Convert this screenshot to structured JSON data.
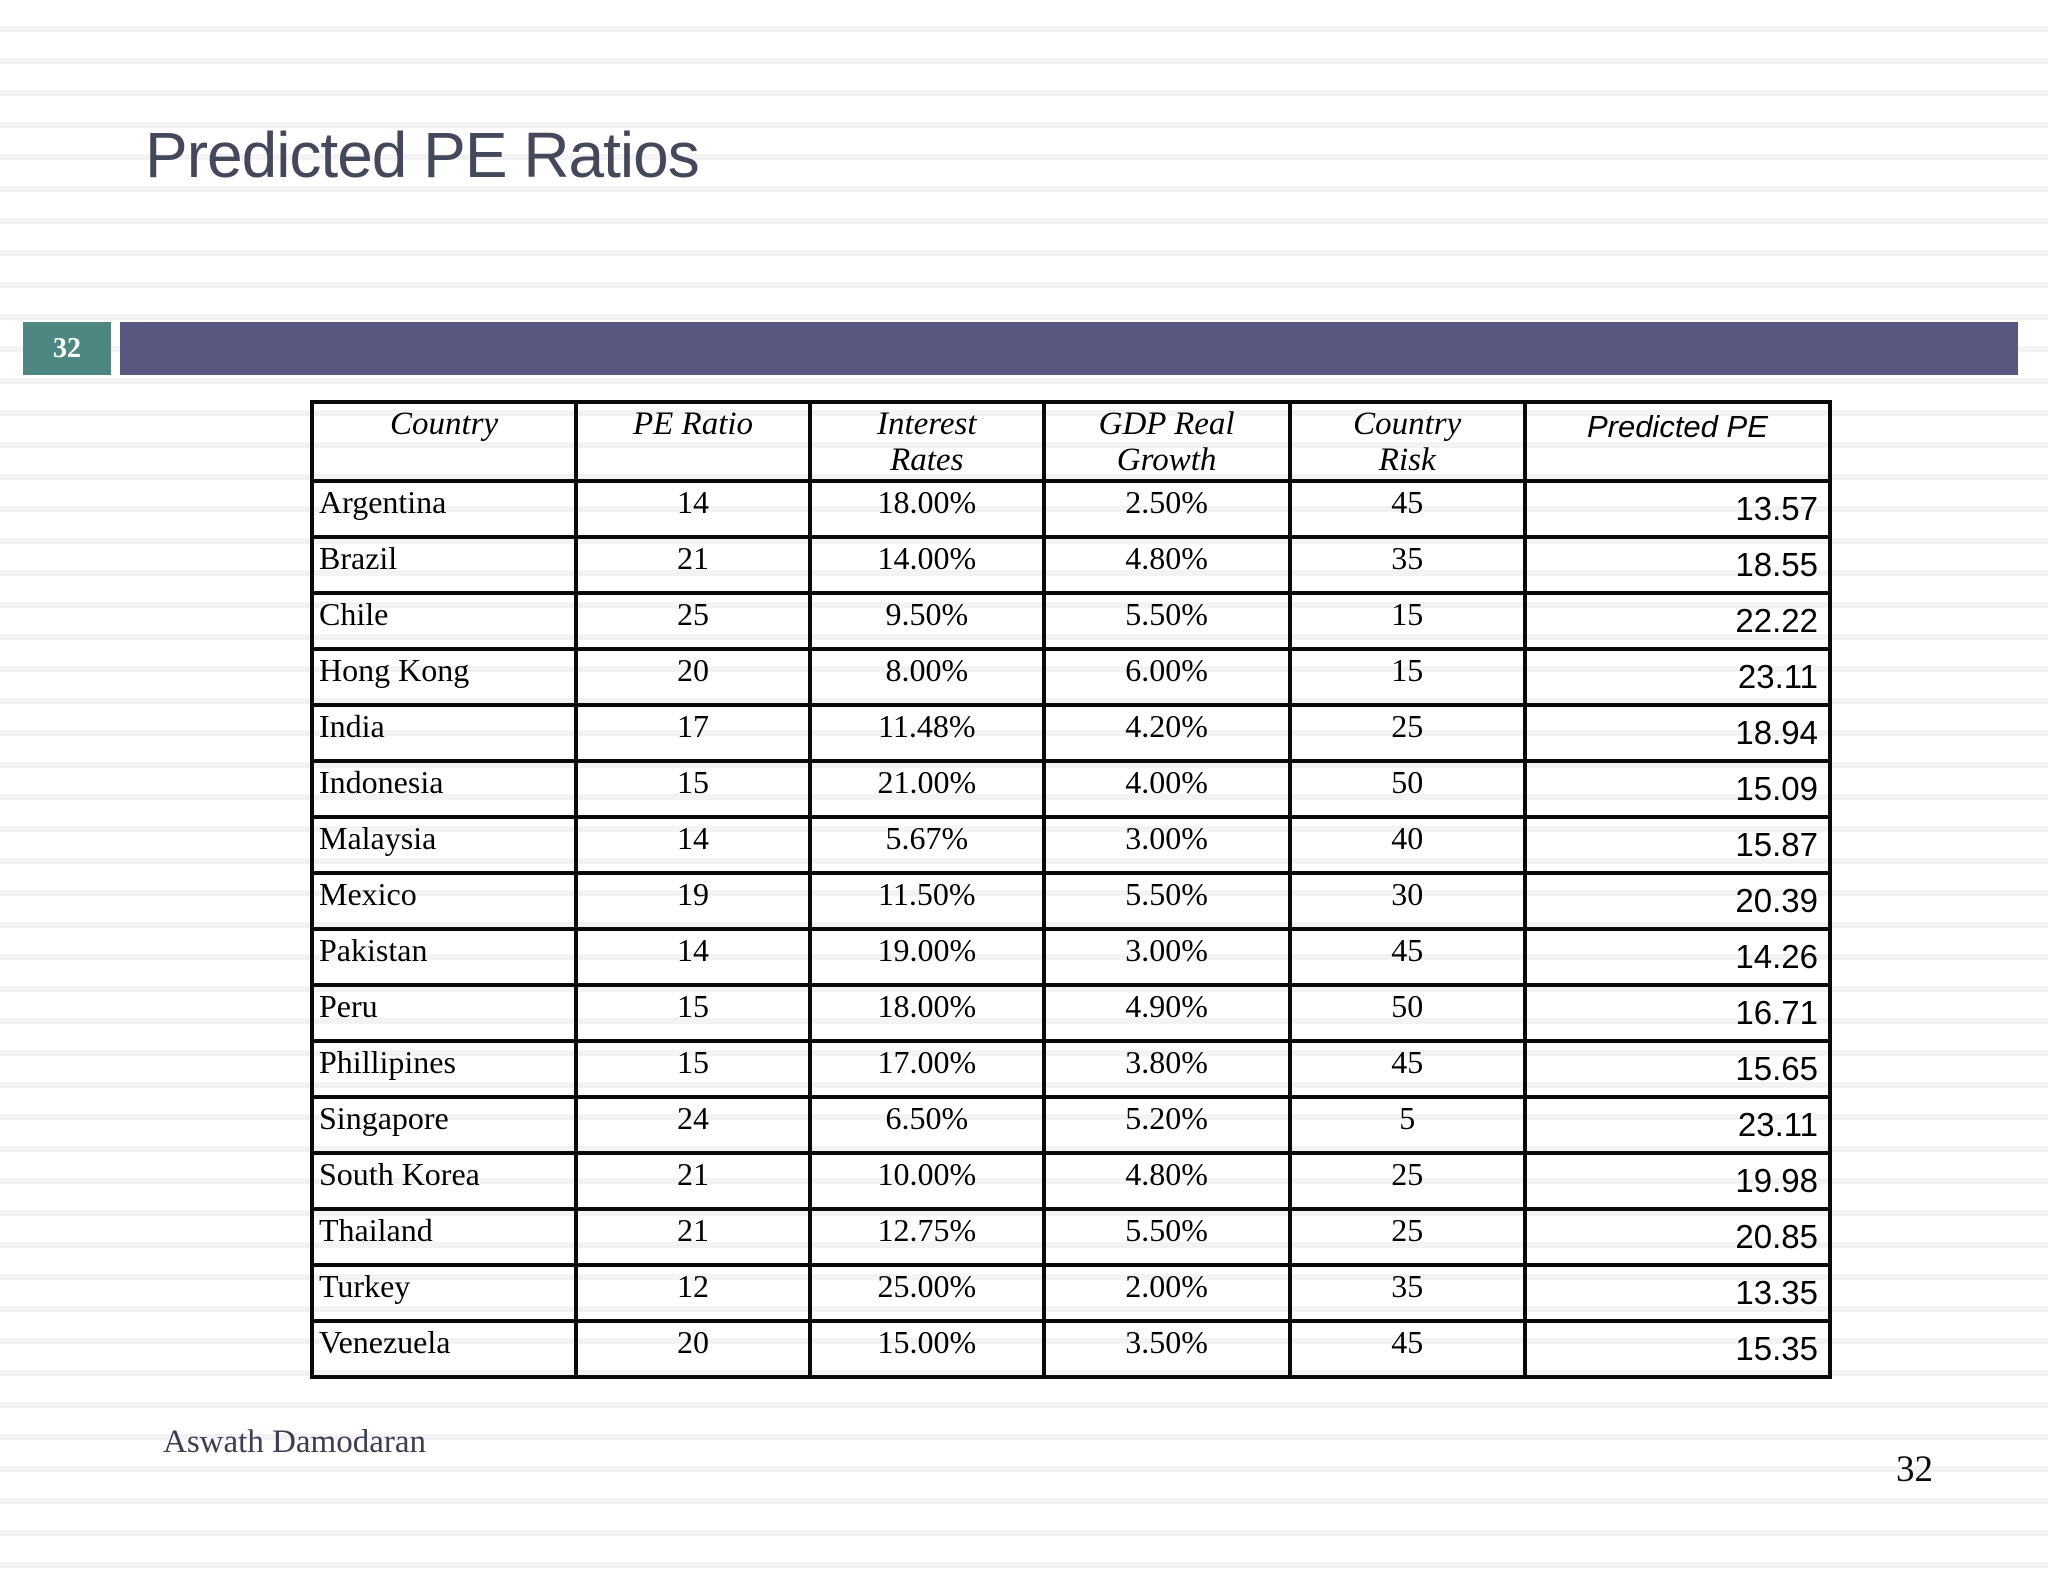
{
  "slide": {
    "title": "Predicted PE Ratios",
    "slide_number_badge": "32",
    "footer_author": "Aswath Damodaran",
    "footer_page_number": "32",
    "accent_bar_color": "#585780",
    "badge_color": "#4e8682",
    "title_color": "#45485a"
  },
  "table": {
    "headers": [
      "Country",
      "PE Ratio",
      "Interest Rates",
      "GDP Real Growth",
      "Country Risk",
      "Predicted PE"
    ],
    "rows": [
      {
        "country": "Argentina",
        "pe_ratio": "14",
        "interest_rate": "18.00%",
        "gdp_real_growth": "2.50%",
        "country_risk": "45",
        "predicted_pe": "13.57"
      },
      {
        "country": "Brazil",
        "pe_ratio": "21",
        "interest_rate": "14.00%",
        "gdp_real_growth": "4.80%",
        "country_risk": "35",
        "predicted_pe": "18.55"
      },
      {
        "country": "Chile",
        "pe_ratio": "25",
        "interest_rate": "9.50%",
        "gdp_real_growth": "5.50%",
        "country_risk": "15",
        "predicted_pe": "22.22"
      },
      {
        "country": "Hong Kong",
        "pe_ratio": "20",
        "interest_rate": "8.00%",
        "gdp_real_growth": "6.00%",
        "country_risk": "15",
        "predicted_pe": "23.11"
      },
      {
        "country": "India",
        "pe_ratio": "17",
        "interest_rate": "11.48%",
        "gdp_real_growth": "4.20%",
        "country_risk": "25",
        "predicted_pe": "18.94"
      },
      {
        "country": "Indonesia",
        "pe_ratio": "15",
        "interest_rate": "21.00%",
        "gdp_real_growth": "4.00%",
        "country_risk": "50",
        "predicted_pe": "15.09"
      },
      {
        "country": "Malaysia",
        "pe_ratio": "14",
        "interest_rate": "5.67%",
        "gdp_real_growth": "3.00%",
        "country_risk": "40",
        "predicted_pe": "15.87"
      },
      {
        "country": "Mexico",
        "pe_ratio": "19",
        "interest_rate": "11.50%",
        "gdp_real_growth": "5.50%",
        "country_risk": "30",
        "predicted_pe": "20.39"
      },
      {
        "country": "Pakistan",
        "pe_ratio": "14",
        "interest_rate": "19.00%",
        "gdp_real_growth": "3.00%",
        "country_risk": "45",
        "predicted_pe": "14.26"
      },
      {
        "country": "Peru",
        "pe_ratio": "15",
        "interest_rate": "18.00%",
        "gdp_real_growth": "4.90%",
        "country_risk": "50",
        "predicted_pe": "16.71"
      },
      {
        "country": "Phillipines",
        "pe_ratio": "15",
        "interest_rate": "17.00%",
        "gdp_real_growth": "3.80%",
        "country_risk": "45",
        "predicted_pe": "15.65"
      },
      {
        "country": "Singapore",
        "pe_ratio": "24",
        "interest_rate": "6.50%",
        "gdp_real_growth": "5.20%",
        "country_risk": "5",
        "predicted_pe": "23.11"
      },
      {
        "country": "South Korea",
        "pe_ratio": "21",
        "interest_rate": "10.00%",
        "gdp_real_growth": "4.80%",
        "country_risk": "25",
        "predicted_pe": "19.98"
      },
      {
        "country": "Thailand",
        "pe_ratio": "21",
        "interest_rate": "12.75%",
        "gdp_real_growth": "5.50%",
        "country_risk": "25",
        "predicted_pe": "20.85"
      },
      {
        "country": "Turkey",
        "pe_ratio": "12",
        "interest_rate": "25.00%",
        "gdp_real_growth": "2.00%",
        "country_risk": "35",
        "predicted_pe": "13.35"
      },
      {
        "country": "Venezuela",
        "pe_ratio": "20",
        "interest_rate": "15.00%",
        "gdp_real_growth": "3.50%",
        "country_risk": "45",
        "predicted_pe": "15.35"
      }
    ]
  }
}
